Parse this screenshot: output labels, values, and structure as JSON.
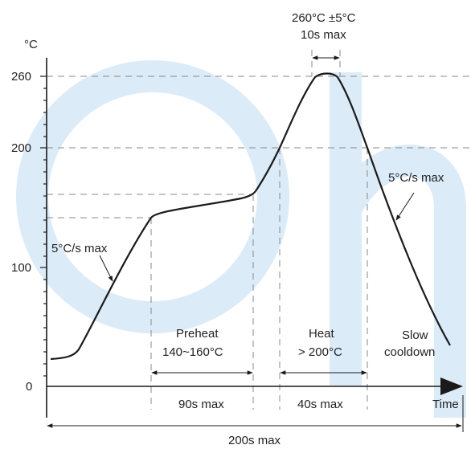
{
  "y_axis": {
    "unit": "°C",
    "ticks": [
      "260",
      "200",
      "100",
      "0"
    ]
  },
  "x_axis": {
    "label": "Time"
  },
  "peak": {
    "temp_label": "260°C ±5°C",
    "time_label": "10s max"
  },
  "ramp_up": {
    "label": "5°C/s max"
  },
  "ramp_down": {
    "label": "5°C/s max"
  },
  "preheat": {
    "title": "Preheat",
    "range": "140~160°C",
    "duration": "90s max"
  },
  "heat": {
    "title": "Heat",
    "range": "> 200°C",
    "duration": "40s max"
  },
  "cooldown": {
    "line1": "Slow",
    "line2": "cooldown"
  },
  "total": {
    "duration": "200s max"
  },
  "colors": {
    "curve": "#1a1a1a",
    "guides": "#888888",
    "watermark": "#dcebf8"
  }
}
